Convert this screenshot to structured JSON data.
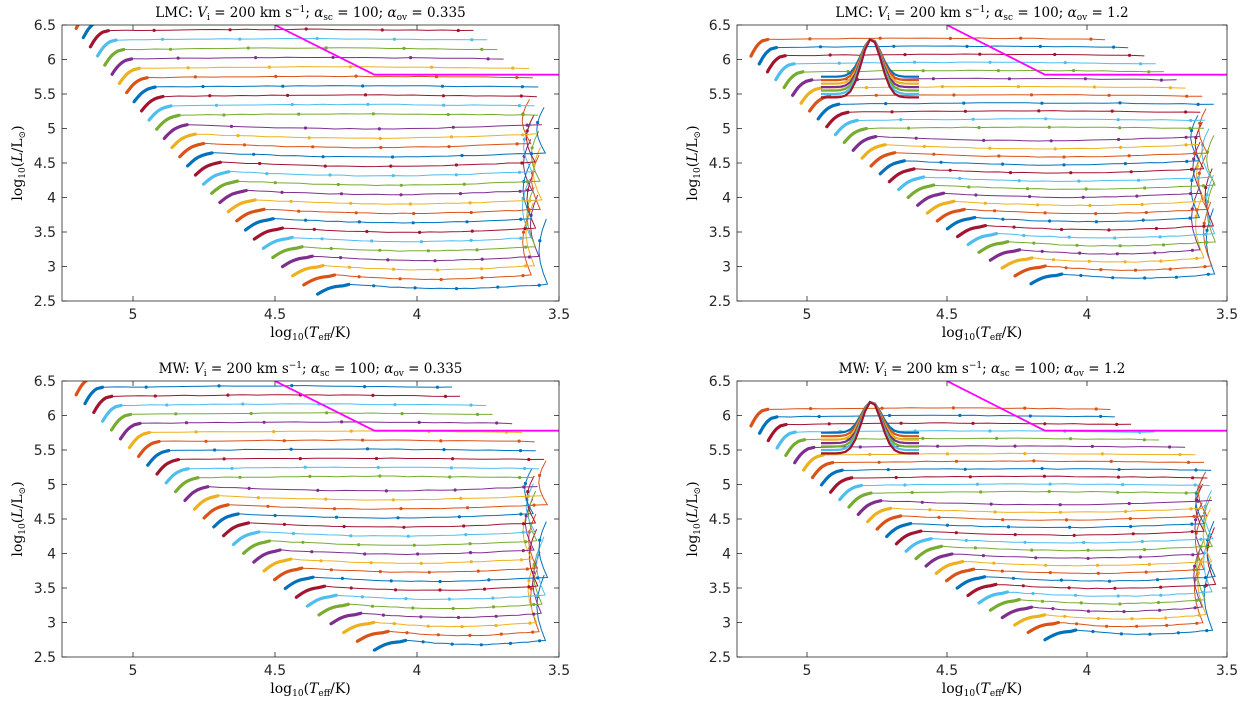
{
  "figure": {
    "panels": [
      {
        "title": "LMC: V_i = 200 km s^-1; α_sc = 100; α_ov = 0.335",
        "title_parts": {
          "region": "LMC",
          "velocity": "200",
          "alpha_sc": "100",
          "alpha_ov": "0.335"
        },
        "overshoot": "low",
        "tracks_bottom": 2.6,
        "tracks_top": 6.45,
        "zams_hot_bottom": 4.35,
        "zams_hot_top": 5.2,
        "knee_y": 6.15
      },
      {
        "title": "LMC: V_i = 200 km s^-1; α_sc = 100; α_ov = 1.2",
        "title_parts": {
          "region": "LMC",
          "velocity": "200",
          "alpha_sc": "100",
          "alpha_ov": "1.2"
        },
        "overshoot": "high",
        "tracks_bottom": 2.75,
        "tracks_top": 6.05,
        "zams_hot_bottom": 4.2,
        "zams_hot_top": 5.2,
        "knee_y": 6.3
      },
      {
        "title": "MW: V_i = 200 km s^-1; α_sc = 100; α_ov = 0.335",
        "title_parts": {
          "region": "MW",
          "velocity": "200",
          "alpha_sc": "100",
          "alpha_ov": "0.335"
        },
        "overshoot": "low",
        "tracks_bottom": 2.6,
        "tracks_top": 6.3,
        "zams_hot_bottom": 4.15,
        "zams_hot_top": 5.2,
        "knee_y": 6.2
      },
      {
        "title": "MW: V_i = 200 km s^-1; α_sc = 100; α_ov = 1.2",
        "title_parts": {
          "region": "MW",
          "velocity": "200",
          "alpha_sc": "100",
          "alpha_ov": "1.2"
        },
        "overshoot": "high",
        "tracks_bottom": 2.75,
        "tracks_top": 5.85,
        "zams_hot_bottom": 4.15,
        "zams_hot_top": 5.2,
        "knee_y": 6.2
      }
    ],
    "axes": {
      "xlabel": "log10(Teff/K)",
      "ylabel": "log10(L/L⊙)",
      "xlim": [
        5.25,
        3.5
      ],
      "ylim": [
        2.5,
        6.5
      ],
      "x_reversed": true,
      "xticks": [
        "5",
        "4.5",
        "4",
        "3.5"
      ],
      "yticks": [
        "2.5",
        "3",
        "3.5",
        "4",
        "4.5",
        "5",
        "5.5",
        "6",
        "6.5"
      ],
      "grid": false
    },
    "hd_limit": {
      "color": "#ff00ff",
      "points": [
        [
          4.5,
          6.5
        ],
        [
          4.15,
          5.78
        ],
        [
          3.5,
          5.78
        ]
      ]
    },
    "track_colors": [
      "#0072bd",
      "#d95319",
      "#edb120",
      "#7e2f8e",
      "#77ac30",
      "#4dbeee",
      "#a2142f"
    ]
  },
  "chart_data": [
    {
      "type": "line",
      "title": "LMC: V_i = 200 km s^-1; α_sc = 100; α_ov = 0.335",
      "xlabel": "log10(Teff/K)",
      "ylabel": "log10(L/L⊙)",
      "xlim": [
        5.25,
        3.5
      ],
      "ylim": [
        2.5,
        6.5
      ],
      "series": [
        {
          "values": [
            [
              4.5,
              6.5
            ],
            [
              4.15,
              5.78
            ],
            [
              3.5,
              5.78
            ]
          ]
        }
      ]
    },
    {
      "type": "line",
      "title": "LMC: V_i = 200 km s^-1; α_sc = 100; α_ov = 1.2",
      "xlabel": "log10(Teff/K)",
      "ylabel": "log10(L/L⊙)",
      "xlim": [
        5.25,
        3.5
      ],
      "ylim": [
        2.5,
        6.5
      ],
      "series": [
        {
          "values": [
            [
              4.5,
              6.5
            ],
            [
              4.15,
              5.78
            ],
            [
              3.5,
              5.78
            ]
          ]
        }
      ]
    },
    {
      "type": "line",
      "title": "MW: V_i = 200 km s^-1; α_sc = 100; α_ov = 0.335",
      "xlabel": "log10(Teff/K)",
      "ylabel": "log10(L/L⊙)",
      "xlim": [
        5.25,
        3.5
      ],
      "ylim": [
        2.5,
        6.5
      ],
      "series": [
        {
          "values": [
            [
              4.5,
              6.5
            ],
            [
              4.15,
              5.78
            ],
            [
              3.5,
              5.78
            ]
          ]
        }
      ]
    },
    {
      "type": "line",
      "title": "MW: V_i = 200 km s^-1; α_sc = 100; α_ov = 1.2",
      "xlabel": "log10(Teff/K)",
      "ylabel": "log10(L/L⊙)",
      "xlim": [
        5.25,
        3.5
      ],
      "ylim": [
        2.5,
        6.5
      ],
      "series": [
        {
          "values": [
            [
              4.5,
              6.5
            ],
            [
              4.15,
              5.78
            ],
            [
              3.5,
              5.78
            ]
          ]
        }
      ]
    }
  ]
}
